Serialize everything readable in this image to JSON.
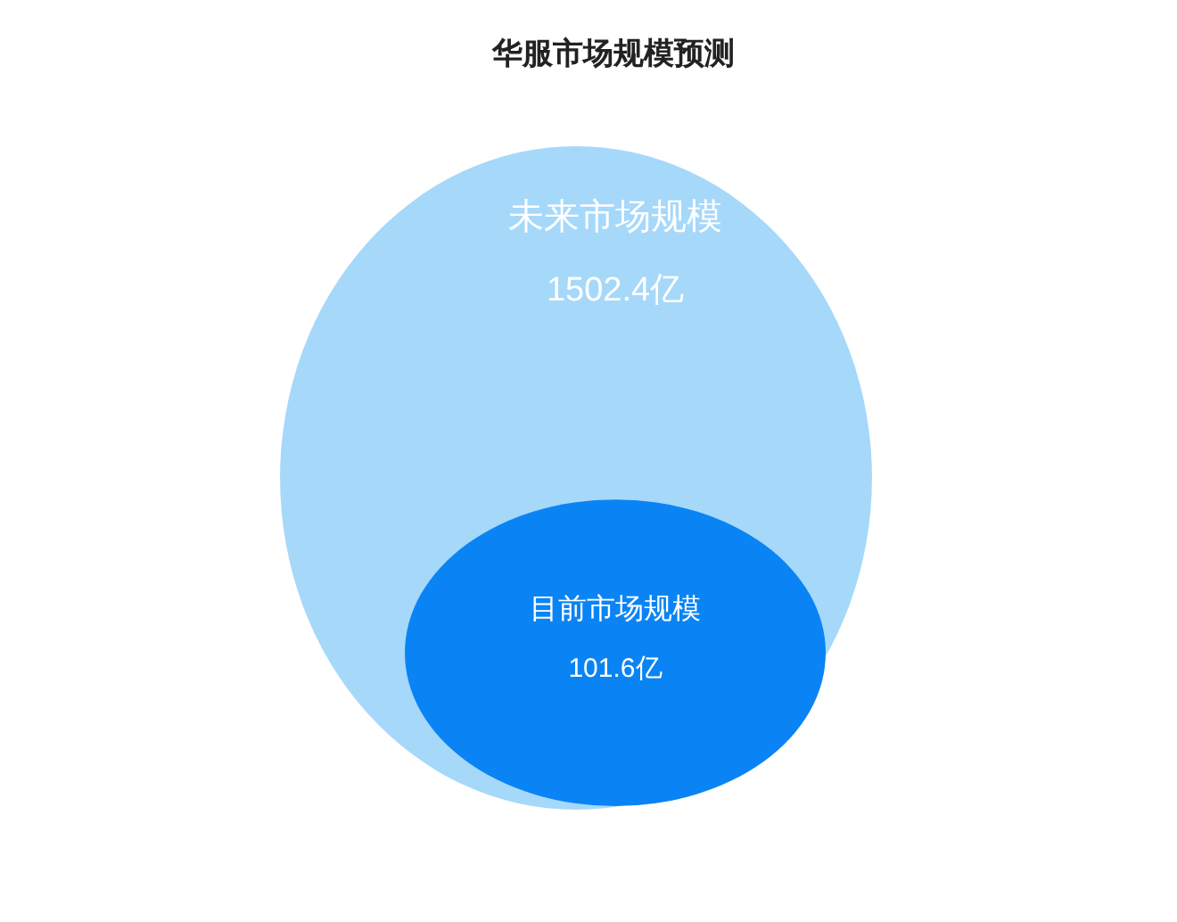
{
  "chart_data": {
    "type": "other",
    "title": "华服市场规模预测",
    "categories": [
      "未来市场规模",
      "目前市场规模"
    ],
    "values": [
      1502.4,
      101.6
    ],
    "value_labels": [
      "1502.4亿",
      "101.6亿"
    ],
    "colors": [
      "#a6d8fa",
      "#0a84f4"
    ]
  }
}
